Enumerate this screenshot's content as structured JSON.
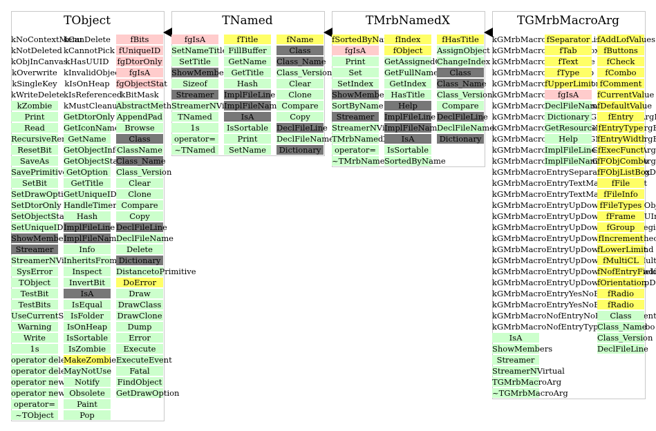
{
  "colors": {
    "green": "#ccffcc",
    "pink": "#ffcccc",
    "yellow": "#ffff66",
    "gray": "#777777"
  },
  "classes": [
    {
      "id": "tobject",
      "name": "TObject",
      "columns": [
        [
          [
            "kNoContextMenu",
            "w"
          ],
          [
            "kNotDeleted",
            "w"
          ],
          [
            "kObjInCanvas",
            "w"
          ],
          [
            "kOverwrite",
            "w"
          ],
          [
            "kSingleKey",
            "w"
          ],
          [
            "kWriteDelete",
            "w"
          ],
          [
            "kZombie",
            "g"
          ],
          [
            "Print",
            "g"
          ],
          [
            "Read",
            "g"
          ],
          [
            "RecursiveRemove",
            "g"
          ],
          [
            "ResetBit",
            "g"
          ],
          [
            "SaveAs",
            "g"
          ],
          [
            "SavePrimitive",
            "g"
          ],
          [
            "SetBit",
            "g"
          ],
          [
            "SetDrawOption",
            "g"
          ],
          [
            "SetDtorOnly",
            "g"
          ],
          [
            "SetObjectStat",
            "g"
          ],
          [
            "SetUniqueID",
            "g"
          ],
          [
            "ShowMembers",
            "k"
          ],
          [
            "Streamer",
            "k"
          ],
          [
            "StreamerNVirtual",
            "g"
          ],
          [
            "SysError",
            "g"
          ],
          [
            "TObject",
            "g"
          ],
          [
            "TestBit",
            "g"
          ],
          [
            "TestBits",
            "g"
          ],
          [
            "UseCurrentStyle",
            "g"
          ],
          [
            "Warning",
            "g"
          ],
          [
            "Write",
            "g"
          ],
          [
            "1s",
            "g"
          ],
          [
            "operator delete",
            "g"
          ],
          [
            "operator delete[]",
            "g"
          ],
          [
            "operator new",
            "g"
          ],
          [
            "operator new[]",
            "g"
          ],
          [
            "operator=",
            "g"
          ],
          [
            "~TObject",
            "g"
          ]
        ],
        [
          [
            "kCanDelete",
            "w"
          ],
          [
            "kCannotPick",
            "w"
          ],
          [
            "kHasUUID",
            "w"
          ],
          [
            "kInvalidObject",
            "w"
          ],
          [
            "kIsOnHeap",
            "w"
          ],
          [
            "kIsReferenced",
            "w"
          ],
          [
            "kMustCleanup",
            "w"
          ],
          [
            "GetDtorOnly",
            "g"
          ],
          [
            "GetIconName",
            "g"
          ],
          [
            "GetName",
            "g"
          ],
          [
            "GetObjectInfo",
            "g"
          ],
          [
            "GetObjectStat",
            "g"
          ],
          [
            "GetOption",
            "g"
          ],
          [
            "GetTitle",
            "g"
          ],
          [
            "GetUniqueID",
            "g"
          ],
          [
            "HandleTimer",
            "g"
          ],
          [
            "Hash",
            "g"
          ],
          [
            "ImplFileLine",
            "k"
          ],
          [
            "ImplFileName",
            "k"
          ],
          [
            "Info",
            "g"
          ],
          [
            "InheritsFrom",
            "g"
          ],
          [
            "Inspect",
            "g"
          ],
          [
            "InvertBit",
            "g"
          ],
          [
            "IsA",
            "k"
          ],
          [
            "IsEqual",
            "g"
          ],
          [
            "IsFolder",
            "g"
          ],
          [
            "IsOnHeap",
            "g"
          ],
          [
            "IsSortable",
            "g"
          ],
          [
            "IsZombie",
            "g"
          ],
          [
            "MakeZombie",
            "y"
          ],
          [
            "MayNotUse",
            "g"
          ],
          [
            "Notify",
            "g"
          ],
          [
            "Obsolete",
            "g"
          ],
          [
            "Paint",
            "g"
          ],
          [
            "Pop",
            "g"
          ]
        ],
        [
          [
            "fBits",
            "p"
          ],
          [
            "fUniqueID",
            "p"
          ],
          [
            "fgDtorOnly",
            "p"
          ],
          [
            "fgIsA",
            "p"
          ],
          [
            "fgObjectStat",
            "p"
          ],
          [
            "kBitMask",
            "w"
          ],
          [
            "AbstractMethod",
            "g"
          ],
          [
            "AppendPad",
            "g"
          ],
          [
            "Browse",
            "g"
          ],
          [
            "Class",
            "k"
          ],
          [
            "ClassName",
            "g"
          ],
          [
            "Class_Name",
            "k"
          ],
          [
            "Class_Version",
            "g"
          ],
          [
            "Clear",
            "g"
          ],
          [
            "Clone",
            "g"
          ],
          [
            "Compare",
            "g"
          ],
          [
            "Copy",
            "g"
          ],
          [
            "DeclFileLine",
            "k"
          ],
          [
            "DeclFileName",
            "g"
          ],
          [
            "Delete",
            "g"
          ],
          [
            "Dictionary",
            "k"
          ],
          [
            "DistancetoPrimitive",
            "g"
          ],
          [
            "DoError",
            "y"
          ],
          [
            "Draw",
            "g"
          ],
          [
            "DrawClass",
            "g"
          ],
          [
            "DrawClone",
            "g"
          ],
          [
            "Dump",
            "g"
          ],
          [
            "Error",
            "g"
          ],
          [
            "Execute",
            "g"
          ],
          [
            "ExecuteEvent",
            "g"
          ],
          [
            "Fatal",
            "g"
          ],
          [
            "FindObject",
            "g"
          ],
          [
            "GetDrawOption",
            "g"
          ]
        ]
      ]
    },
    {
      "id": "tnamed",
      "name": "TNamed",
      "columns": [
        [
          [
            "fgIsA",
            "p"
          ],
          [
            "SetNameTitle",
            "g"
          ],
          [
            "SetTitle",
            "g"
          ],
          [
            "ShowMembers",
            "k"
          ],
          [
            "Sizeof",
            "g"
          ],
          [
            "Streamer",
            "k"
          ],
          [
            "StreamerNVirtual",
            "g"
          ],
          [
            "TNamed",
            "g"
          ],
          [
            "1s",
            "g"
          ],
          [
            "operator=",
            "g"
          ],
          [
            "~TNamed",
            "g"
          ]
        ],
        [
          [
            "fTitle",
            "y"
          ],
          [
            "FillBuffer",
            "g"
          ],
          [
            "GetName",
            "g"
          ],
          [
            "GetTitle",
            "g"
          ],
          [
            "Hash",
            "g"
          ],
          [
            "ImplFileLine",
            "k"
          ],
          [
            "ImplFileName",
            "k"
          ],
          [
            "IsA",
            "k"
          ],
          [
            "IsSortable",
            "g"
          ],
          [
            "Print",
            "g"
          ],
          [
            "SetName",
            "g"
          ]
        ],
        [
          [
            "fName",
            "y"
          ],
          [
            "Class",
            "k"
          ],
          [
            "Class_Name",
            "k"
          ],
          [
            "Class_Version",
            "g"
          ],
          [
            "Clear",
            "g"
          ],
          [
            "Clone",
            "g"
          ],
          [
            "Compare",
            "g"
          ],
          [
            "Copy",
            "g"
          ],
          [
            "DeclFileLine",
            "k"
          ],
          [
            "DeclFileName",
            "g"
          ],
          [
            "Dictionary",
            "k"
          ]
        ]
      ]
    },
    {
      "id": "tmrbnamedx",
      "name": "TMrbNamedX",
      "columns": [
        [
          [
            "fSortedByName",
            "y"
          ],
          [
            "fgIsA",
            "p"
          ],
          [
            "Print",
            "g"
          ],
          [
            "Set",
            "g"
          ],
          [
            "SetIndex",
            "g"
          ],
          [
            "ShowMembers",
            "k"
          ],
          [
            "SortByName",
            "g"
          ],
          [
            "Streamer",
            "k"
          ],
          [
            "StreamerNVirtual",
            "g"
          ],
          [
            "TMrbNamedX",
            "g"
          ],
          [
            "operator=",
            "g"
          ],
          [
            "~TMrbNamedX",
            "g"
          ]
        ],
        [
          [
            "fIndex",
            "y"
          ],
          [
            "fObject",
            "y"
          ],
          [
            "GetAssignedObject",
            "g"
          ],
          [
            "GetFullName",
            "g"
          ],
          [
            "GetIndex",
            "g"
          ],
          [
            "HasTitle",
            "g"
          ],
          [
            "Help",
            "k"
          ],
          [
            "ImplFileLine",
            "k"
          ],
          [
            "ImplFileName",
            "k"
          ],
          [
            "IsA",
            "k"
          ],
          [
            "IsSortable",
            "g"
          ],
          [
            "SortedByName",
            "g"
          ]
        ],
        [
          [
            "fHasTitle",
            "y"
          ],
          [
            "AssignObject",
            "g"
          ],
          [
            "ChangeIndex",
            "g"
          ],
          [
            "Class",
            "k"
          ],
          [
            "Class_Name",
            "k"
          ],
          [
            "Class_Version",
            "g"
          ],
          [
            "Compare",
            "g"
          ],
          [
            "DeclFileLine",
            "k"
          ],
          [
            "DeclFileName",
            "g"
          ],
          [
            "Dictionary",
            "k"
          ]
        ]
      ]
    },
    {
      "id": "tgmrbmacroarg",
      "name": "TGMrbMacroArg",
      "columns": [
        [
          [
            "kGMrbMacroEntryFObjListBox",
            "w"
          ],
          [
            "kGMrbMacroEntryFileBox",
            "w"
          ],
          [
            "kGMrbMacroEntryFrame",
            "w"
          ],
          [
            "kGMrbMacroEntryGroup",
            "w"
          ],
          [
            "kGMrbMacroEntryHorizontal",
            "w"
          ],
          [
            "kGMrbMacroEntryMulti",
            "w"
          ],
          [
            "kGMrbMacroEntryNofgIsA",
            "w"
          ],
          [
            "kGMrbMacroEntryMultiGMrbMacroArgBase",
            "w"
          ],
          [
            "kGMrbMacroEntryPlainGMrbMacroArgBase",
            "w"
          ],
          [
            "kGMrbMacroEntryPlainGMrbMacroArgBase",
            "w"
          ],
          [
            "kGMrbMacroEntryRadioGMrbMacroArgBase",
            "w"
          ],
          [
            "kGMrbMacroEntryRadioGMrbMacroArgBase",
            "w"
          ],
          [
            "kGMrbMacroEntrySeparatorMacroArgDouble",
            "w"
          ],
          [
            "kGMrbMacroEntryTextMacroArgFloat",
            "w"
          ],
          [
            "kGMrbMacroEntryTextMacroArgInt",
            "w"
          ],
          [
            "kGMrbMacroEntryUpDownMacroArgObjt",
            "w"
          ],
          [
            "kGMrbMacroEntryUpDownMacroArgUInt",
            "w"
          ],
          [
            "kGMrbMacroEntryUpDownEntryBitBegin",
            "w"
          ],
          [
            "kGMrbMacroEntryUpDownEntryBitCheck",
            "w"
          ],
          [
            "kGMrbMacroEntryUpDownEntryBitEnd",
            "w"
          ],
          [
            "kGMrbMacroEntryUpDownEntryBitMulti",
            "w"
          ],
          [
            "kGMrbMacroEntryUpDownEntryBitRadio",
            "w"
          ],
          [
            "kGMrbMacroEntryUpDownEntryBitUpDown",
            "w"
          ],
          [
            "kGMrbMacroEntryYesNoEntryCombo",
            "w"
          ],
          [
            "kGMrbMacroEntryYesNoEntryCombo",
            "w"
          ],
          [
            "kGMrbMacroNofEntryNoEntryComment",
            "w"
          ],
          [
            "kGMrbMacroNofEntryTypesFObjCombo",
            "w"
          ],
          [
            "IsA",
            "g"
          ],
          [
            "ShowMembers",
            "g"
          ],
          [
            "Streamer",
            "g"
          ],
          [
            "StreamerNVirtual",
            "g"
          ],
          [
            "TGMrbMacroArg",
            "g"
          ],
          [
            "~TGMrbMacroArg",
            "g"
          ]
        ],
        [
          [
            "fSeparator",
            "y"
          ],
          [
            "fTab",
            "y"
          ],
          [
            "fText",
            "y"
          ],
          [
            "fType",
            "y"
          ],
          [
            "fUpperLimit",
            "y"
          ],
          [
            "fgIsA",
            "p"
          ],
          [
            "DeclFileName",
            "g"
          ],
          [
            "Dictionary",
            "g"
          ],
          [
            "GetResource",
            "g"
          ],
          [
            "Help",
            "g"
          ],
          [
            "ImplFileLine",
            "g"
          ],
          [
            "ImplFileName",
            "g"
          ]
        ],
        [
          [
            "fAddLofValues",
            "y"
          ],
          [
            "fButtons",
            "y"
          ],
          [
            "fCheck",
            "y"
          ],
          [
            "fCombo",
            "y"
          ],
          [
            "fComment",
            "y"
          ],
          [
            "fCurrentValue",
            "y"
          ],
          [
            "fDefaultValue",
            "y"
          ],
          [
            "fEntry",
            "y"
          ],
          [
            "fEntryType",
            "y"
          ],
          [
            "fEntryWidth",
            "y"
          ],
          [
            "fExecFunct",
            "y"
          ],
          [
            "fFObjCombo",
            "y"
          ],
          [
            "fFObjListBox",
            "y"
          ],
          [
            "fFile",
            "y"
          ],
          [
            "fFileInfo",
            "y"
          ],
          [
            "fFileTypes",
            "y"
          ],
          [
            "fFrame",
            "y"
          ],
          [
            "fGroup",
            "y"
          ],
          [
            "fIncrement",
            "y"
          ],
          [
            "fLowerLimit",
            "y"
          ],
          [
            "fMultiCL",
            "y"
          ],
          [
            "fNofEntryFields",
            "y"
          ],
          [
            "fOrientation",
            "y"
          ],
          [
            "fRadio",
            "y"
          ],
          [
            "fRadio",
            "y"
          ],
          [
            "Class",
            "g"
          ],
          [
            "Class_Name",
            "g"
          ],
          [
            "Class_Version",
            "g"
          ],
          [
            "DeclFileLine",
            "g"
          ]
        ]
      ]
    }
  ]
}
